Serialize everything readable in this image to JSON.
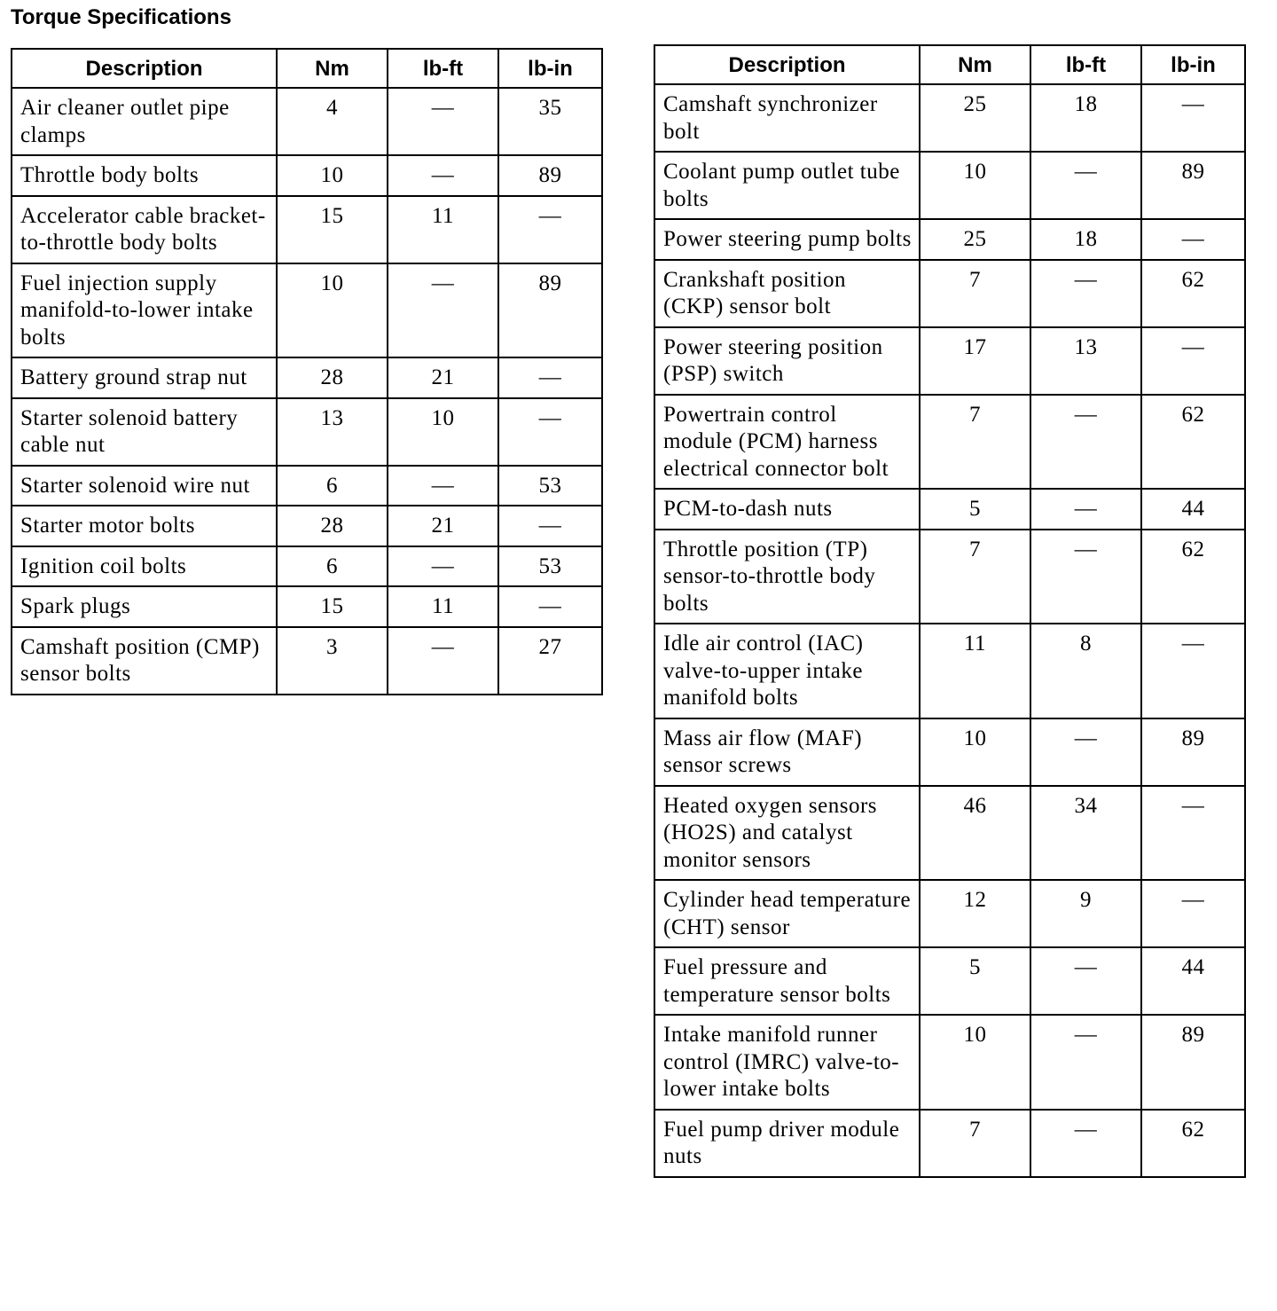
{
  "title": "Torque Specifications",
  "headers": [
    "Description",
    "Nm",
    "lb-ft",
    "lb-in"
  ],
  "left_table": [
    [
      "Air cleaner outlet pipe clamps",
      "4",
      "—",
      "35"
    ],
    [
      "Throttle body bolts",
      "10",
      "—",
      "89"
    ],
    [
      "Accelerator cable bracket-to-throttle body bolts",
      "15",
      "11",
      "—"
    ],
    [
      "Fuel injection supply manifold-to-lower intake bolts",
      "10",
      "—",
      "89"
    ],
    [
      "Battery ground strap nut",
      "28",
      "21",
      "—"
    ],
    [
      "Starter solenoid battery cable nut",
      "13",
      "10",
      "—"
    ],
    [
      "Starter solenoid wire nut",
      "6",
      "—",
      "53"
    ],
    [
      "Starter motor bolts",
      "28",
      "21",
      "—"
    ],
    [
      "Ignition coil bolts",
      "6",
      "—",
      "53"
    ],
    [
      "Spark plugs",
      "15",
      "11",
      "—"
    ],
    [
      "Camshaft position (CMP) sensor bolts",
      "3",
      "—",
      "27"
    ]
  ],
  "right_table": [
    [
      "Camshaft synchronizer bolt",
      "25",
      "18",
      "—"
    ],
    [
      "Coolant pump outlet tube bolts",
      "10",
      "—",
      "89"
    ],
    [
      "Power steering pump bolts",
      "25",
      "18",
      "—"
    ],
    [
      "Crankshaft position (CKP) sensor bolt",
      "7",
      "—",
      "62"
    ],
    [
      "Power steering position (PSP) switch",
      "17",
      "13",
      "—"
    ],
    [
      "Powertrain control module (PCM) harness electrical connector bolt",
      "7",
      "—",
      "62"
    ],
    [
      "PCM-to-dash nuts",
      "5",
      "—",
      "44"
    ],
    [
      "Throttle position (TP) sensor-to-throttle body bolts",
      "7",
      "—",
      "62"
    ],
    [
      "Idle air control (IAC) valve-to-upper intake manifold bolts",
      "11",
      "8",
      "—"
    ],
    [
      "Mass air flow (MAF) sensor screws",
      "10",
      "—",
      "89"
    ],
    [
      "Heated oxygen sensors (HO2S) and catalyst monitor sensors",
      "46",
      "34",
      "—"
    ],
    [
      "Cylinder head temperature (CHT) sensor",
      "12",
      "9",
      "—"
    ],
    [
      "Fuel pressure and temperature sensor bolts",
      "5",
      "—",
      "44"
    ],
    [
      "Intake manifold runner control (IMRC) valve-to-lower intake bolts",
      "10",
      "—",
      "89"
    ],
    [
      "Fuel pump driver module nuts",
      "7",
      "—",
      "62"
    ]
  ]
}
